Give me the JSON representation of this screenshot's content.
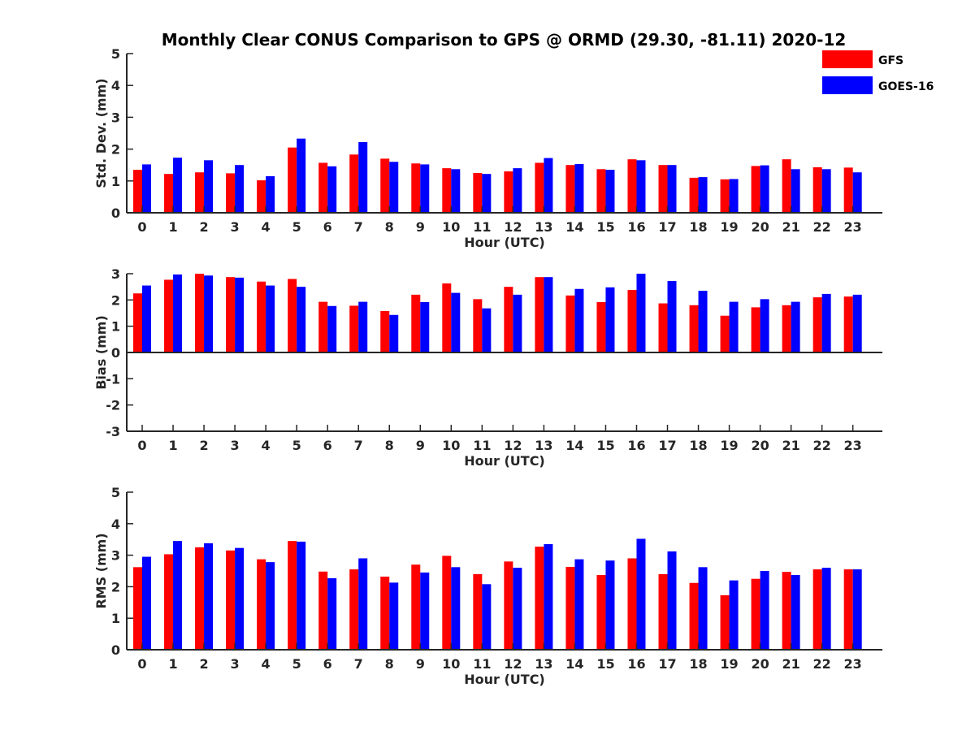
{
  "title": "Monthly Clear CONUS Comparison to GPS @ ORMD (29.30, -81.11) 2020-12",
  "legend": [
    {
      "label": "GFS",
      "color": "#ff0000"
    },
    {
      "label": "GOES-16",
      "color": "#0000ff"
    }
  ],
  "chart_data": [
    {
      "type": "bar",
      "xlabel": "Hour (UTC)",
      "ylabel": "Std. Dev. (mm)",
      "ylim": [
        0,
        5
      ],
      "yticks": [
        0,
        1,
        2,
        3,
        4,
        5
      ],
      "categories": [
        "0",
        "1",
        "2",
        "3",
        "4",
        "5",
        "6",
        "7",
        "8",
        "9",
        "10",
        "11",
        "12",
        "13",
        "14",
        "15",
        "16",
        "17",
        "18",
        "19",
        "20",
        "21",
        "22",
        "23"
      ],
      "series": [
        {
          "name": "GFS",
          "values": [
            1.35,
            1.22,
            1.27,
            1.24,
            1.02,
            2.05,
            1.57,
            1.83,
            1.7,
            1.55,
            1.4,
            1.25,
            1.3,
            1.57,
            1.5,
            1.37,
            1.68,
            1.5,
            1.1,
            1.05,
            1.47,
            1.68,
            1.43,
            1.42
          ]
        },
        {
          "name": "GOES-16",
          "values": [
            1.52,
            1.73,
            1.65,
            1.5,
            1.15,
            2.33,
            1.46,
            2.22,
            1.6,
            1.52,
            1.37,
            1.22,
            1.4,
            1.72,
            1.53,
            1.35,
            1.65,
            1.5,
            1.12,
            1.06,
            1.49,
            1.37,
            1.37,
            1.27
          ]
        }
      ]
    },
    {
      "type": "bar",
      "xlabel": "Hour (UTC)",
      "ylabel": "Bias (mm)",
      "ylim": [
        -3,
        3
      ],
      "yticks": [
        -3,
        -2,
        -1,
        0,
        1,
        2,
        3
      ],
      "categories": [
        "0",
        "1",
        "2",
        "3",
        "4",
        "5",
        "6",
        "7",
        "8",
        "9",
        "10",
        "11",
        "12",
        "13",
        "14",
        "15",
        "16",
        "17",
        "18",
        "19",
        "20",
        "21",
        "22",
        "23"
      ],
      "series": [
        {
          "name": "GFS",
          "values": [
            2.25,
            2.77,
            3.0,
            2.87,
            2.7,
            2.8,
            1.93,
            1.78,
            1.58,
            2.2,
            2.63,
            2.03,
            2.5,
            2.87,
            2.17,
            1.92,
            2.38,
            1.87,
            1.8,
            1.4,
            1.72,
            1.8,
            2.1,
            2.13
          ]
        },
        {
          "name": "GOES-16",
          "values": [
            2.55,
            2.97,
            2.93,
            2.85,
            2.55,
            2.5,
            1.77,
            1.93,
            1.43,
            1.92,
            2.27,
            1.68,
            2.2,
            2.87,
            2.42,
            2.48,
            3.0,
            2.72,
            2.35,
            1.93,
            2.03,
            1.93,
            2.23,
            2.2
          ]
        }
      ]
    },
    {
      "type": "bar",
      "xlabel": "Hour (UTC)",
      "ylabel": "RMS (mm)",
      "ylim": [
        0,
        5
      ],
      "yticks": [
        0,
        1,
        2,
        3,
        4,
        5
      ],
      "categories": [
        "0",
        "1",
        "2",
        "3",
        "4",
        "5",
        "6",
        "7",
        "8",
        "9",
        "10",
        "11",
        "12",
        "13",
        "14",
        "15",
        "16",
        "17",
        "18",
        "19",
        "20",
        "21",
        "22",
        "23"
      ],
      "series": [
        {
          "name": "GFS",
          "values": [
            2.62,
            3.03,
            3.25,
            3.15,
            2.87,
            3.45,
            2.48,
            2.55,
            2.32,
            2.7,
            2.98,
            2.4,
            2.8,
            3.27,
            2.63,
            2.37,
            2.9,
            2.4,
            2.12,
            1.73,
            2.25,
            2.47,
            2.55,
            2.55
          ]
        },
        {
          "name": "GOES-16",
          "values": [
            2.95,
            3.45,
            3.38,
            3.23,
            2.78,
            3.43,
            2.27,
            2.9,
            2.13,
            2.45,
            2.62,
            2.08,
            2.6,
            3.35,
            2.87,
            2.83,
            3.52,
            3.12,
            2.62,
            2.2,
            2.5,
            2.37,
            2.6,
            2.55
          ]
        }
      ]
    }
  ]
}
